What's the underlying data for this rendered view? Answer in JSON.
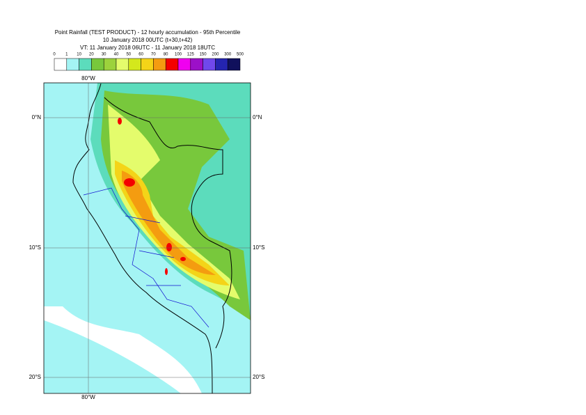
{
  "header": {
    "title": "Point Rainfall (TEST PRODUCT) - 12 hourly accumulation - 95th Percentile",
    "line2": "10 January 2018 00UTC (t+30,t+42)",
    "line3": "VT: 11 January 2018 06UTC - 11 January 2018 18UTC"
  },
  "legend": {
    "labels": [
      "0",
      "1",
      "10",
      "20",
      "30",
      "40",
      "50",
      "60",
      "70",
      "80",
      "100",
      "125",
      "150",
      "200",
      "300",
      "500"
    ],
    "colors": [
      "#ffffff",
      "#a4f4f4",
      "#5cdcbc",
      "#78c83c",
      "#9cd23c",
      "#e4fc6c",
      "#d4e81c",
      "#f4d418",
      "#f49c10",
      "#f40000",
      "#f000f0",
      "#9c10c8",
      "#7048ec",
      "#2424b0",
      "#10105c"
    ]
  },
  "map": {
    "top_lon_label": "80°W",
    "bottom_lon_label": "80°W",
    "lat_labels_left": [
      "0°N",
      "10°S",
      "20°S"
    ],
    "lat_labels_right": [
      "0°N",
      "10°S",
      "20°S"
    ]
  }
}
